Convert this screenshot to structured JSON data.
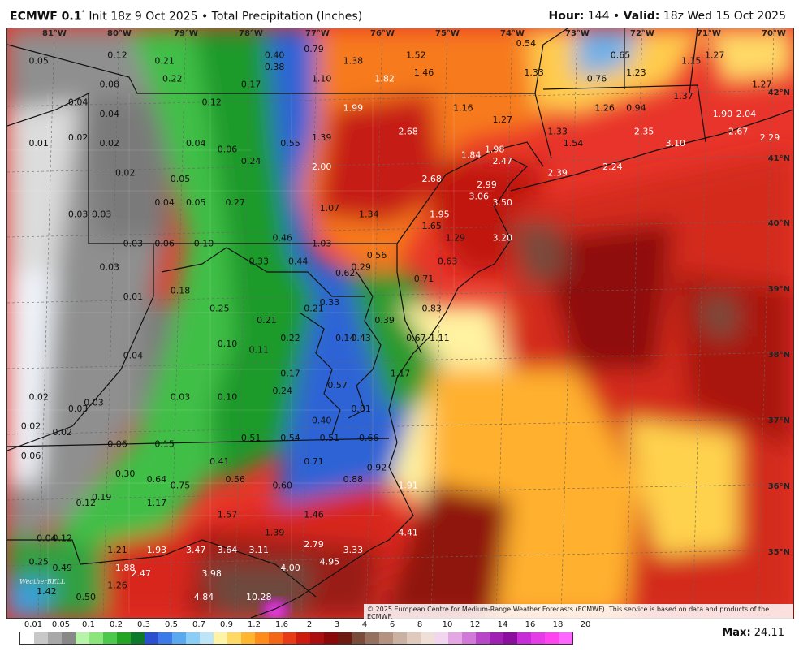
{
  "header": {
    "model": "ECMWF 0.1",
    "init": "Init 18z 9 Oct 2025",
    "sep": "•",
    "product": "Total Precipitation (Inches)",
    "hour_label": "Hour:",
    "hour_value": "144",
    "valid_label": "Valid:",
    "valid_value": "18z Wed 15 Oct 2025"
  },
  "map": {
    "lon_labels": [
      "81°W",
      "80°W",
      "79°W",
      "78°W",
      "77°W",
      "76°W",
      "75°W",
      "74°W",
      "73°W",
      "72°W",
      "71°W",
      "70°W"
    ],
    "lat_labels": [
      "42°N",
      "41°N",
      "40°N",
      "39°N",
      "38°N",
      "37°N",
      "36°N",
      "35°N"
    ],
    "values": [
      {
        "t": "0.05",
        "x": 0.04,
        "y": 0.06
      },
      {
        "t": "0.12",
        "x": 0.14,
        "y": 0.05
      },
      {
        "t": "0.21",
        "x": 0.2,
        "y": 0.06
      },
      {
        "t": "0.40",
        "x": 0.34,
        "y": 0.05
      },
      {
        "t": "0.79",
        "x": 0.39,
        "y": 0.04
      },
      {
        "t": "1.38",
        "x": 0.44,
        "y": 0.06
      },
      {
        "t": "1.52",
        "x": 0.52,
        "y": 0.05
      },
      {
        "t": "0.54",
        "x": 0.66,
        "y": 0.03
      },
      {
        "t": "0.65",
        "x": 0.78,
        "y": 0.05
      },
      {
        "t": "1.15",
        "x": 0.87,
        "y": 0.06
      },
      {
        "t": "1.27",
        "x": 0.9,
        "y": 0.05
      },
      {
        "t": "0.38",
        "x": 0.34,
        "y": 0.07
      },
      {
        "t": "1.46",
        "x": 0.53,
        "y": 0.08
      },
      {
        "t": "1.33",
        "x": 0.67,
        "y": 0.08
      },
      {
        "t": "1.23",
        "x": 0.8,
        "y": 0.08
      },
      {
        "t": "1.82",
        "x": 0.48,
        "y": 0.09
      },
      {
        "t": "0.08",
        "x": 0.13,
        "y": 0.1
      },
      {
        "t": "0.22",
        "x": 0.21,
        "y": 0.09
      },
      {
        "t": "0.17",
        "x": 0.31,
        "y": 0.1
      },
      {
        "t": "1.10",
        "x": 0.4,
        "y": 0.09
      },
      {
        "t": "0.76",
        "x": 0.75,
        "y": 0.09
      },
      {
        "t": "1.27",
        "x": 0.96,
        "y": 0.1
      },
      {
        "t": "0.04",
        "x": 0.09,
        "y": 0.13
      },
      {
        "t": "0.12",
        "x": 0.26,
        "y": 0.13
      },
      {
        "t": "1.99",
        "x": 0.44,
        "y": 0.14
      },
      {
        "t": "1.16",
        "x": 0.58,
        "y": 0.14
      },
      {
        "t": "1.26",
        "x": 0.76,
        "y": 0.14
      },
      {
        "t": "0.94",
        "x": 0.8,
        "y": 0.14
      },
      {
        "t": "1.37",
        "x": 0.86,
        "y": 0.12
      },
      {
        "t": "1.90",
        "x": 0.91,
        "y": 0.15
      },
      {
        "t": "2.04",
        "x": 0.94,
        "y": 0.15
      },
      {
        "t": "0.04",
        "x": 0.13,
        "y": 0.15
      },
      {
        "t": "1.27",
        "x": 0.63,
        "y": 0.16
      },
      {
        "t": "1.33",
        "x": 0.7,
        "y": 0.18
      },
      {
        "t": "2.67",
        "x": 0.93,
        "y": 0.18
      },
      {
        "t": "0.01",
        "x": 0.04,
        "y": 0.2
      },
      {
        "t": "0.02",
        "x": 0.09,
        "y": 0.19
      },
      {
        "t": "0.02",
        "x": 0.13,
        "y": 0.2
      },
      {
        "t": "0.04",
        "x": 0.24,
        "y": 0.2
      },
      {
        "t": "0.06",
        "x": 0.28,
        "y": 0.21
      },
      {
        "t": "0.55",
        "x": 0.36,
        "y": 0.2
      },
      {
        "t": "1.39",
        "x": 0.4,
        "y": 0.19
      },
      {
        "t": "2.68",
        "x": 0.51,
        "y": 0.18
      },
      {
        "t": "1.98",
        "x": 0.62,
        "y": 0.21
      },
      {
        "t": "1.54",
        "x": 0.72,
        "y": 0.2
      },
      {
        "t": "2.35",
        "x": 0.81,
        "y": 0.18
      },
      {
        "t": "3.10",
        "x": 0.85,
        "y": 0.2
      },
      {
        "t": "2.29",
        "x": 0.97,
        "y": 0.19
      },
      {
        "t": "0.24",
        "x": 0.31,
        "y": 0.23
      },
      {
        "t": "1.84",
        "x": 0.59,
        "y": 0.22
      },
      {
        "t": "2.47",
        "x": 0.63,
        "y": 0.23
      },
      {
        "t": "2.24",
        "x": 0.77,
        "y": 0.24
      },
      {
        "t": "0.02",
        "x": 0.15,
        "y": 0.25
      },
      {
        "t": "0.05",
        "x": 0.22,
        "y": 0.26
      },
      {
        "t": "2.00",
        "x": 0.4,
        "y": 0.24
      },
      {
        "t": "2.68",
        "x": 0.54,
        "y": 0.26
      },
      {
        "t": "2.99",
        "x": 0.61,
        "y": 0.27
      },
      {
        "t": "2.39",
        "x": 0.7,
        "y": 0.25
      },
      {
        "t": "3.06",
        "x": 0.6,
        "y": 0.29
      },
      {
        "t": "3.50",
        "x": 0.63,
        "y": 0.3
      },
      {
        "t": "0.03",
        "x": 0.09,
        "y": 0.32
      },
      {
        "t": "0.03",
        "x": 0.12,
        "y": 0.32
      },
      {
        "t": "0.04",
        "x": 0.2,
        "y": 0.3
      },
      {
        "t": "0.05",
        "x": 0.24,
        "y": 0.3
      },
      {
        "t": "0.27",
        "x": 0.29,
        "y": 0.3
      },
      {
        "t": "1.07",
        "x": 0.41,
        "y": 0.31
      },
      {
        "t": "1.34",
        "x": 0.46,
        "y": 0.32
      },
      {
        "t": "1.95",
        "x": 0.55,
        "y": 0.32
      },
      {
        "t": "1.65",
        "x": 0.54,
        "y": 0.34
      },
      {
        "t": "0.46",
        "x": 0.35,
        "y": 0.36
      },
      {
        "t": "1.29",
        "x": 0.57,
        "y": 0.36
      },
      {
        "t": "3.20",
        "x": 0.63,
        "y": 0.36
      },
      {
        "t": "0.03",
        "x": 0.16,
        "y": 0.37
      },
      {
        "t": "0.06",
        "x": 0.2,
        "y": 0.37
      },
      {
        "t": "0.10",
        "x": 0.25,
        "y": 0.37
      },
      {
        "t": "1.03",
        "x": 0.4,
        "y": 0.37
      },
      {
        "t": "0.33",
        "x": 0.32,
        "y": 0.4
      },
      {
        "t": "0.44",
        "x": 0.37,
        "y": 0.4
      },
      {
        "t": "0.29",
        "x": 0.45,
        "y": 0.41
      },
      {
        "t": "0.56",
        "x": 0.47,
        "y": 0.39
      },
      {
        "t": "0.63",
        "x": 0.56,
        "y": 0.4
      },
      {
        "t": "0.03",
        "x": 0.13,
        "y": 0.41
      },
      {
        "t": "0.62",
        "x": 0.43,
        "y": 0.42
      },
      {
        "t": "0.71",
        "x": 0.53,
        "y": 0.43
      },
      {
        "t": "0.18",
        "x": 0.22,
        "y": 0.45
      },
      {
        "t": "0.01",
        "x": 0.16,
        "y": 0.46
      },
      {
        "t": "0.33",
        "x": 0.41,
        "y": 0.47
      },
      {
        "t": "0.25",
        "x": 0.27,
        "y": 0.48
      },
      {
        "t": "0.21",
        "x": 0.39,
        "y": 0.48
      },
      {
        "t": "0.83",
        "x": 0.54,
        "y": 0.48
      },
      {
        "t": "0.21",
        "x": 0.33,
        "y": 0.5
      },
      {
        "t": "0.39",
        "x": 0.48,
        "y": 0.5
      },
      {
        "t": "0.22",
        "x": 0.36,
        "y": 0.53
      },
      {
        "t": "0.14",
        "x": 0.43,
        "y": 0.53
      },
      {
        "t": "0.43",
        "x": 0.45,
        "y": 0.53
      },
      {
        "t": "0.67",
        "x": 0.52,
        "y": 0.53
      },
      {
        "t": "1.11",
        "x": 0.55,
        "y": 0.53
      },
      {
        "t": "0.10",
        "x": 0.28,
        "y": 0.54
      },
      {
        "t": "0.04",
        "x": 0.16,
        "y": 0.56
      },
      {
        "t": "0.11",
        "x": 0.32,
        "y": 0.55
      },
      {
        "t": "0.17",
        "x": 0.36,
        "y": 0.59
      },
      {
        "t": "1.17",
        "x": 0.5,
        "y": 0.59
      },
      {
        "t": "0.57",
        "x": 0.42,
        "y": 0.61
      },
      {
        "t": "0.24",
        "x": 0.35,
        "y": 0.62
      },
      {
        "t": "0.02",
        "x": 0.04,
        "y": 0.63
      },
      {
        "t": "0.03",
        "x": 0.11,
        "y": 0.64
      },
      {
        "t": "0.03",
        "x": 0.22,
        "y": 0.63
      },
      {
        "t": "0.10",
        "x": 0.28,
        "y": 0.63
      },
      {
        "t": "0.03",
        "x": 0.09,
        "y": 0.65
      },
      {
        "t": "0.81",
        "x": 0.45,
        "y": 0.65
      },
      {
        "t": "0.40",
        "x": 0.4,
        "y": 0.67
      },
      {
        "t": "0.02",
        "x": 0.03,
        "y": 0.68
      },
      {
        "t": "0.02",
        "x": 0.07,
        "y": 0.69
      },
      {
        "t": "0.51",
        "x": 0.31,
        "y": 0.7
      },
      {
        "t": "0.54",
        "x": 0.36,
        "y": 0.7
      },
      {
        "t": "0.51",
        "x": 0.41,
        "y": 0.7
      },
      {
        "t": "0.66",
        "x": 0.46,
        "y": 0.7
      },
      {
        "t": "0.06",
        "x": 0.14,
        "y": 0.71
      },
      {
        "t": "0.15",
        "x": 0.2,
        "y": 0.71
      },
      {
        "t": "0.06",
        "x": 0.03,
        "y": 0.73
      },
      {
        "t": "0.41",
        "x": 0.27,
        "y": 0.74
      },
      {
        "t": "0.71",
        "x": 0.39,
        "y": 0.74
      },
      {
        "t": "0.92",
        "x": 0.47,
        "y": 0.75
      },
      {
        "t": "0.30",
        "x": 0.15,
        "y": 0.76
      },
      {
        "t": "0.64",
        "x": 0.19,
        "y": 0.77
      },
      {
        "t": "0.56",
        "x": 0.29,
        "y": 0.77
      },
      {
        "t": "0.88",
        "x": 0.44,
        "y": 0.77
      },
      {
        "t": "1.91",
        "x": 0.51,
        "y": 0.78
      },
      {
        "t": "0.75",
        "x": 0.22,
        "y": 0.78
      },
      {
        "t": "0.60",
        "x": 0.35,
        "y": 0.78
      },
      {
        "t": "0.19",
        "x": 0.12,
        "y": 0.8
      },
      {
        "t": "0.12",
        "x": 0.1,
        "y": 0.81
      },
      {
        "t": "1.17",
        "x": 0.19,
        "y": 0.81
      },
      {
        "t": "1.57",
        "x": 0.28,
        "y": 0.83
      },
      {
        "t": "1.46",
        "x": 0.39,
        "y": 0.83
      },
      {
        "t": "1.39",
        "x": 0.34,
        "y": 0.86
      },
      {
        "t": "4.41",
        "x": 0.51,
        "y": 0.86
      },
      {
        "t": "0.04",
        "x": 0.05,
        "y": 0.87
      },
      {
        "t": "0.12",
        "x": 0.07,
        "y": 0.87
      },
      {
        "t": "1.21",
        "x": 0.14,
        "y": 0.89
      },
      {
        "t": "1.93",
        "x": 0.19,
        "y": 0.89
      },
      {
        "t": "3.47",
        "x": 0.24,
        "y": 0.89
      },
      {
        "t": "3.64",
        "x": 0.28,
        "y": 0.89
      },
      {
        "t": "3.11",
        "x": 0.32,
        "y": 0.89
      },
      {
        "t": "2.79",
        "x": 0.39,
        "y": 0.88
      },
      {
        "t": "3.33",
        "x": 0.44,
        "y": 0.89
      },
      {
        "t": "0.25",
        "x": 0.04,
        "y": 0.91
      },
      {
        "t": "4.95",
        "x": 0.41,
        "y": 0.91
      },
      {
        "t": "0.49",
        "x": 0.07,
        "y": 0.92
      },
      {
        "t": "1.88",
        "x": 0.15,
        "y": 0.92
      },
      {
        "t": "2.47",
        "x": 0.17,
        "y": 0.93
      },
      {
        "t": "3.98",
        "x": 0.26,
        "y": 0.93
      },
      {
        "t": "4.00",
        "x": 0.36,
        "y": 0.92
      },
      {
        "t": "1.42",
        "x": 0.05,
        "y": 0.96
      },
      {
        "t": "0.50",
        "x": 0.1,
        "y": 0.97
      },
      {
        "t": "1.26",
        "x": 0.14,
        "y": 0.95
      },
      {
        "t": "4.84",
        "x": 0.25,
        "y": 0.97
      },
      {
        "t": "10.28",
        "x": 0.32,
        "y": 0.97
      }
    ]
  },
  "logo_text": "WeatherBELL",
  "copyright": "© 2025 European Centre for Medium-Range Weather Forecasts (ECMWF). This service is based on data and products of the ECMWF.",
  "legend": {
    "labels": [
      "0.01",
      "0.05",
      "0.1",
      "0.2",
      "0.3",
      "0.5",
      "0.7",
      "0.9",
      "1.2",
      "1.6",
      "2",
      "3",
      "4",
      "6",
      "8",
      "10",
      "12",
      "14",
      "16",
      "18",
      "20"
    ],
    "colors": [
      "#ffffff",
      "#c8c8c8",
      "#a8a8a8",
      "#888888",
      "#b6f5a8",
      "#8ae67a",
      "#4cc94a",
      "#23a523",
      "#0d7a2a",
      "#2a4fd0",
      "#3b7ae8",
      "#5aa8f0",
      "#8acdf5",
      "#bde5f7",
      "#fff3a6",
      "#ffd966",
      "#ffb62e",
      "#ff8c1a",
      "#f26616",
      "#e83a14",
      "#cc1a0e",
      "#aa0e0e",
      "#8a0a0a",
      "#6e1c12",
      "#7a4a3a",
      "#96705e",
      "#b39280",
      "#cbb1a2",
      "#e0cabe",
      "#efdfd6",
      "#f2d6f0",
      "#e4a7e4",
      "#d178d8",
      "#b847c8",
      "#a020b4",
      "#8c0e9e",
      "#c82cd8",
      "#e63ce8",
      "#ff44f0",
      "#ff66ff"
    ]
  },
  "max_label": "Max:",
  "max_value": "24.11"
}
